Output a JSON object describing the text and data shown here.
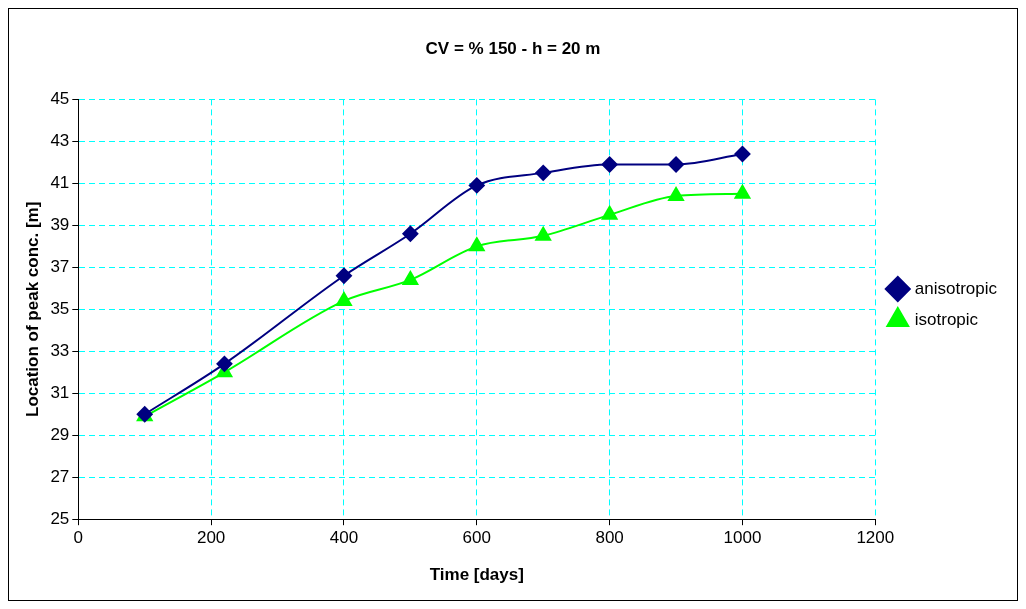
{
  "chart_data": {
    "type": "line",
    "title": "CV = % 150 - h = 20 m",
    "xlabel": "Time [days]",
    "ylabel": "Location of peak conc. [m]",
    "x": [
      100,
      220,
      400,
      500,
      600,
      700,
      800,
      900,
      1000
    ],
    "series": [
      {
        "name": "isotropic",
        "color": "#00ff00",
        "marker": "triangle",
        "values": [
          29.9,
          32.0,
          35.4,
          36.4,
          38.0,
          38.5,
          39.5,
          40.4,
          40.5
        ]
      },
      {
        "name": "anisotropic",
        "color": "#000080",
        "marker": "diamond",
        "values": [
          30.0,
          32.4,
          36.6,
          38.6,
          40.9,
          41.5,
          41.9,
          41.9,
          42.4
        ]
      }
    ],
    "xlim": [
      0,
      1200
    ],
    "xticks": [
      0,
      200,
      400,
      600,
      800,
      1000,
      1200
    ],
    "ylim": [
      25,
      45
    ],
    "yticks": [
      25,
      27,
      29,
      31,
      33,
      35,
      37,
      39,
      41,
      43,
      45
    ],
    "grid": true,
    "legend": "right",
    "line_style": "solid"
  }
}
